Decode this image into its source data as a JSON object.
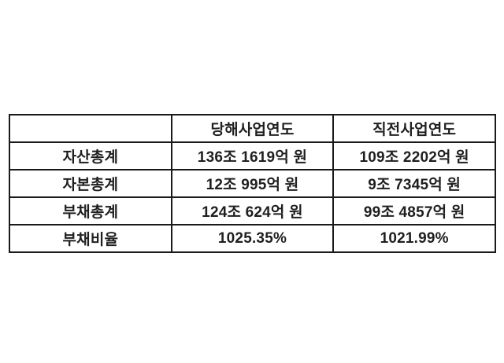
{
  "table": {
    "columns": {
      "label": "",
      "current_year": "당해사업연도",
      "previous_year": "직전사업연도"
    },
    "rows": [
      {
        "label": "자산총계",
        "current": "136조 1619억 원",
        "previous": "109조 2202억 원"
      },
      {
        "label": "자본총계",
        "current": "12조 995억 원",
        "previous": "9조 7345억 원"
      },
      {
        "label": "부채총계",
        "current": "124조 624억 원",
        "previous": "99조 4857억 원"
      },
      {
        "label": "부채비율",
        "current": "1025.35%",
        "previous": "1021.99%"
      }
    ],
    "colors": {
      "border": "#1a1a1a",
      "text": "#1f1f1f",
      "background": "#ffffff"
    }
  }
}
